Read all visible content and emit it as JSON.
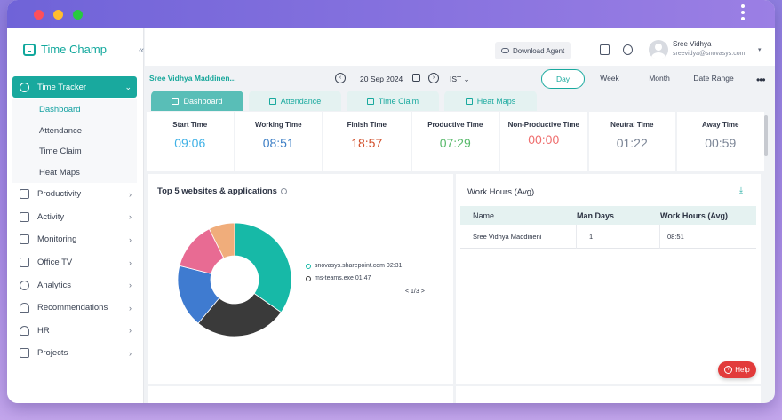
{
  "app": {
    "name": "Time Champ"
  },
  "colors": {
    "accent": "#19a99e",
    "start": "#3fb1e6",
    "working": "#3d7fc6",
    "finish": "#d2502c",
    "productive": "#58b96b",
    "non_productive": "#ef6f6f",
    "neutral": "#7b8596",
    "away": "#7b8596"
  },
  "topbar": {
    "download_agent": "Download Agent",
    "user_name": "Sree Vidhya",
    "user_email": "sreevidya@snovasys.com"
  },
  "sidebar": {
    "active": {
      "label": "Time Tracker",
      "icon": "clock-icon"
    },
    "sub_items": [
      {
        "label": "Dashboard"
      },
      {
        "label": "Attendance"
      },
      {
        "label": "Time Claim"
      },
      {
        "label": "Heat Maps"
      }
    ],
    "items": [
      {
        "label": "Productivity",
        "icon": "chart-icon"
      },
      {
        "label": "Activity",
        "icon": "activity-icon"
      },
      {
        "label": "Monitoring",
        "icon": "monitor-icon"
      },
      {
        "label": "Office TV",
        "icon": "tv-icon"
      },
      {
        "label": "Analytics",
        "icon": "bulb-icon"
      },
      {
        "label": "Recommendations",
        "icon": "bell-icon"
      },
      {
        "label": "HR",
        "icon": "user-icon"
      },
      {
        "label": "Projects",
        "icon": "briefcase-icon"
      }
    ]
  },
  "filters": {
    "employee": "Sree Vidhya Maddinen...",
    "date": "20 Sep 2024",
    "timezone": "IST",
    "periods": [
      "Day",
      "Week",
      "Month",
      "Date Range"
    ],
    "selected_period": "Day"
  },
  "tabs": [
    {
      "label": "Dashboard"
    },
    {
      "label": "Attendance"
    },
    {
      "label": "Time Claim"
    },
    {
      "label": "Heat Maps"
    }
  ],
  "stats": [
    {
      "label": "Start Time",
      "value": "09:06"
    },
    {
      "label": "Working Time",
      "value": "08:51"
    },
    {
      "label": "Finish Time",
      "value": "18:57"
    },
    {
      "label": "Productive Time",
      "value": "07:29"
    },
    {
      "label": "Non-Productive Time",
      "value": "00:00"
    },
    {
      "label": "Neutral Time",
      "value": "01:22"
    },
    {
      "label": "Away Time",
      "value": "00:59"
    }
  ],
  "top_sites": {
    "title": "Top 5 websites & applications",
    "legend": [
      {
        "label": "snovasys.sharepoint.com 02:31",
        "color": "#17b9a7"
      },
      {
        "label": "ms-teams.exe 01:47",
        "color": "#3a3a3a"
      }
    ],
    "pager": "< 1/3 >",
    "donut": [
      {
        "share": 0.33,
        "color": "#17b9a7"
      },
      {
        "share": 0.25,
        "color": "#3a3a3a"
      },
      {
        "share": 0.17,
        "color": "#3f7bd0"
      },
      {
        "share": 0.13,
        "color": "#e86b93"
      },
      {
        "share": 0.07,
        "color": "#f0ad7b"
      }
    ]
  },
  "work_hours": {
    "title": "Work Hours (Avg)",
    "columns": [
      "Name",
      "Man Days",
      "Work Hours (Avg)"
    ],
    "rows": [
      [
        "Sree Vidhya Maddineni",
        "1",
        "08:51"
      ]
    ]
  },
  "help": {
    "label": "Help"
  }
}
